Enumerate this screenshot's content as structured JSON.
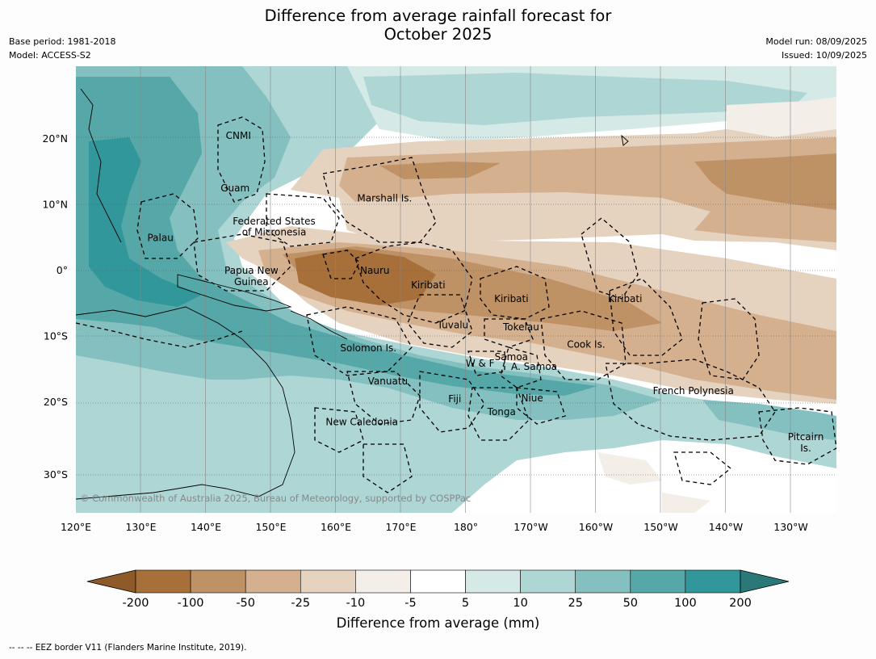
{
  "title_line1": "Difference from average rainfall forecast for",
  "title_line2": "October 2025",
  "meta_left": [
    "Base period: 1981-2018",
    "Model: ACCESS-S2"
  ],
  "meta_right": [
    "Model run: 08/09/2025",
    "Issued: 10/09/2025"
  ],
  "lon_ticks": [
    "120°E",
    "130°E",
    "140°E",
    "150°E",
    "160°E",
    "170°E",
    "180°",
    "170°W",
    "160°W",
    "150°W",
    "140°W",
    "130°W"
  ],
  "lat_ticks": [
    "20°N",
    "10°N",
    "0°",
    "10°S",
    "20°S",
    "30°S"
  ],
  "copyright": "© Commonwealth of Australia 2025, Bureau of Meteorology, supported by COSPPac",
  "regions": [
    {
      "name": "CNMI",
      "lon": 145,
      "lat": 20.5
    },
    {
      "name": "Guam",
      "lon": 144.5,
      "lat": 12.5
    },
    {
      "name": "Marshall Is.",
      "lon": 167.5,
      "lat": 11
    },
    {
      "name": "Federated States",
      "lon": 150.5,
      "lat": 7.5
    },
    {
      "name": "of Micronesia",
      "lon": 150.5,
      "lat": 5.8
    },
    {
      "name": "Palau",
      "lon": 133,
      "lat": 5
    },
    {
      "name": "Papua New",
      "lon": 147,
      "lat": 0
    },
    {
      "name": "Guinea",
      "lon": 147,
      "lat": -1.7
    },
    {
      "name": "Nauru",
      "lon": 166,
      "lat": 0
    },
    {
      "name": "Kiribati",
      "lon": 174.2,
      "lat": -2.2
    },
    {
      "name": "Kiribati",
      "lon": -173,
      "lat": -4.3
    },
    {
      "name": "Kiribati",
      "lon": -155.5,
      "lat": -4.3
    },
    {
      "name": "Tuvalu",
      "lon": 178,
      "lat": -8.3
    },
    {
      "name": "Tokelau",
      "lon": -171.5,
      "lat": -8.6
    },
    {
      "name": "Cook Is.",
      "lon": -161.5,
      "lat": -11.2
    },
    {
      "name": "Solomon Is.",
      "lon": 165,
      "lat": -11.8
    },
    {
      "name": "Samoa",
      "lon": -173,
      "lat": -13.1
    },
    {
      "name": "W & F",
      "lon": -177.8,
      "lat": -14.1
    },
    {
      "name": "A. Samoa",
      "lon": -169.5,
      "lat": -14.6
    },
    {
      "name": "Vanuatu",
      "lon": 168,
      "lat": -16.8
    },
    {
      "name": "French Polynesia",
      "lon": -145,
      "lat": -18.3
    },
    {
      "name": "Fiji",
      "lon": 178.3,
      "lat": -19.5
    },
    {
      "name": "Niue",
      "lon": -169.8,
      "lat": -19.4
    },
    {
      "name": "Tonga",
      "lon": -174.5,
      "lat": -21.5
    },
    {
      "name": "New Caledonia",
      "lon": 164,
      "lat": -23
    },
    {
      "name": "Pitcairn",
      "lon": -127.7,
      "lat": -25.3
    },
    {
      "name": "Is.",
      "lon": -127.7,
      "lat": -27
    }
  ],
  "colorbar": {
    "labels": [
      "-200",
      "-100",
      "-50",
      "-25",
      "-10",
      "-5",
      "5",
      "10",
      "25",
      "50",
      "100",
      "200"
    ],
    "colors": [
      "#8f5a2a",
      "#a7703a",
      "#bf9266",
      "#d4b08f",
      "#e5d2bf",
      "#f3eee7",
      "#ffffff",
      "#d5e9e7",
      "#aed6d5",
      "#84c0c0",
      "#56a8a8",
      "#31979a",
      "#2b7878"
    ],
    "title": "Difference from average (mm)"
  },
  "footnote": "-- -- -- EEZ border V11 (Flanders Marine Institute, 2019)."
}
